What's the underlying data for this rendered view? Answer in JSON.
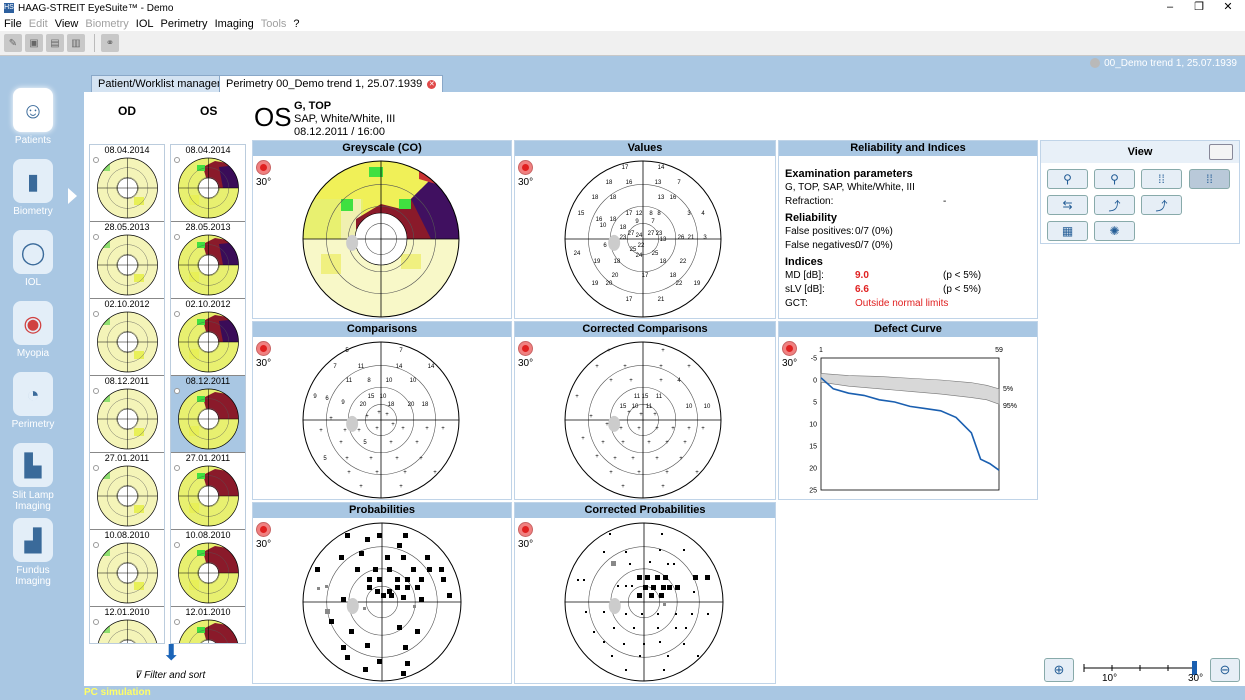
{
  "window": {
    "title": "HAAG-STREIT EyeSuite™   -  Demo",
    "logo": "HS",
    "min": "–",
    "restore": "❐",
    "close": "✕"
  },
  "menu": [
    {
      "label": "File",
      "enabled": true
    },
    {
      "label": "Edit",
      "enabled": false
    },
    {
      "label": "View",
      "enabled": true
    },
    {
      "label": "Biometry",
      "enabled": false
    },
    {
      "label": "IOL",
      "enabled": true
    },
    {
      "label": "Perimetry",
      "enabled": true
    },
    {
      "label": "Imaging",
      "enabled": true
    },
    {
      "label": "Tools",
      "enabled": false
    },
    {
      "label": "?",
      "enabled": true
    }
  ],
  "toolbar": {
    "icons": [
      "open-icon",
      "save-icon",
      "print-icon",
      "delete-icon",
      "network-icon"
    ]
  },
  "patient_bar": "00_Demo trend 1, 25.07.1939",
  "nav": [
    {
      "label": "Patients",
      "icon": "patient-icon",
      "glyph": "☺"
    },
    {
      "label": "Biometry",
      "icon": "biometry-icon",
      "glyph": "▮"
    },
    {
      "label": "IOL",
      "icon": "iol-icon",
      "glyph": "◯"
    },
    {
      "label": "Myopia",
      "icon": "myopia-icon",
      "glyph": "◉"
    },
    {
      "label": "Perimetry",
      "icon": "perimetry-icon",
      "glyph": "◔"
    },
    {
      "label": "Slit Lamp Imaging",
      "icon": "slit-lamp-icon",
      "glyph": "▙"
    },
    {
      "label": "Fundus Imaging",
      "icon": "fundus-icon",
      "glyph": "▟"
    }
  ],
  "tabs": [
    {
      "label": "Patient/Worklist management"
    },
    {
      "label": "Perimetry 00_Demo trend 1, 25.07.1939"
    }
  ],
  "history": {
    "od_label": "OD",
    "os_label": "OS",
    "od_dates": [
      "08.04.2014",
      "28.05.2013",
      "02.10.2012",
      "08.12.2011",
      "27.01.2011",
      "10.08.2010",
      "12.01.2010"
    ],
    "os_dates": [
      "08.04.2014",
      "28.05.2013",
      "02.10.2012",
      "08.12.2011",
      "27.01.2011",
      "10.08.2010",
      "12.01.2010"
    ],
    "selected_os": 3,
    "filter_label": "Filter and sort"
  },
  "exam": {
    "eye": "OS",
    "name": "G, TOP",
    "program": "SAP, White/White, III",
    "datetime": "08.12.2011 / 16:00"
  },
  "panels": {
    "greyscale": {
      "title": "Greyscale (CO)",
      "deg": "30°"
    },
    "values": {
      "title": "Values",
      "deg": "30°"
    },
    "comparisons": {
      "title": "Comparisons",
      "deg": "30°"
    },
    "corr_comparisons": {
      "title": "Corrected Comparisons",
      "deg": "30°"
    },
    "probabilities": {
      "title": "Probabilities",
      "deg": "30°"
    },
    "corr_probabilities": {
      "title": "Corrected Probabilities",
      "deg": "30°"
    }
  },
  "reliability": {
    "title": "Reliability and Indices",
    "exam_params_h": "Examination parameters",
    "exam_params": "G, TOP, SAP, White/White, III",
    "refraction_l": "Refraction:",
    "refraction_v": "-",
    "reliability_h": "Reliability",
    "fp_l": "False positives:",
    "fp_v": "0/7 (0%)",
    "fn_l": "False negatives:",
    "fn_v": "0/7 (0%)",
    "indices_h": "Indices",
    "md_l": "MD [dB]:",
    "md_v": "9.0",
    "md_p": "(p <  5%)",
    "slv_l": "sLV [dB]:",
    "slv_v": "6.6",
    "slv_p": "(p <  5%)",
    "gct_l": "GCT:",
    "gct_v": "Outside normal limits"
  },
  "defect_curve": {
    "title": "Defect Curve",
    "deg": "30°",
    "x_labels": [
      "1",
      "59"
    ],
    "y_ticks": [
      "-5",
      "0",
      "5",
      "10",
      "15",
      "20",
      "25"
    ],
    "band_labels": [
      "5%",
      "95%"
    ]
  },
  "chart_data": {
    "type": "line",
    "title": "Defect Curve",
    "x": [
      1,
      5,
      10,
      15,
      20,
      25,
      30,
      35,
      40,
      45,
      50,
      53,
      56,
      59
    ],
    "ylim": [
      -5,
      25
    ],
    "series": [
      {
        "name": "",
        "values": [
          -0.5,
          2,
          3,
          3.5,
          4.5,
          5,
          6,
          6.5,
          7,
          8.5,
          12,
          18,
          19,
          20.5
        ]
      }
    ]
  },
  "view": {
    "title": "View",
    "buttons": [
      {
        "icon": "single-exam-icon",
        "glyph": "⚲"
      },
      {
        "icon": "two-exam-icon",
        "glyph": "⚲"
      },
      {
        "icon": "grid-view-icon",
        "glyph": "⁞⁞"
      },
      {
        "icon": "dot-grid-icon",
        "glyph": "⁞⁞",
        "active": true
      },
      {
        "icon": "compare-icon",
        "glyph": "⇆"
      },
      {
        "icon": "trend-icon",
        "glyph": "⤴"
      },
      {
        "icon": "trend-analysis-icon",
        "glyph": "⤴"
      },
      {
        "icon": "grid-2-icon",
        "glyph": "▦"
      },
      {
        "icon": "bulb-icon",
        "glyph": "✺"
      }
    ]
  },
  "zoom": {
    "min_label": "10°",
    "max_label": "30°",
    "level": 1.0
  },
  "status": "PC simulation"
}
